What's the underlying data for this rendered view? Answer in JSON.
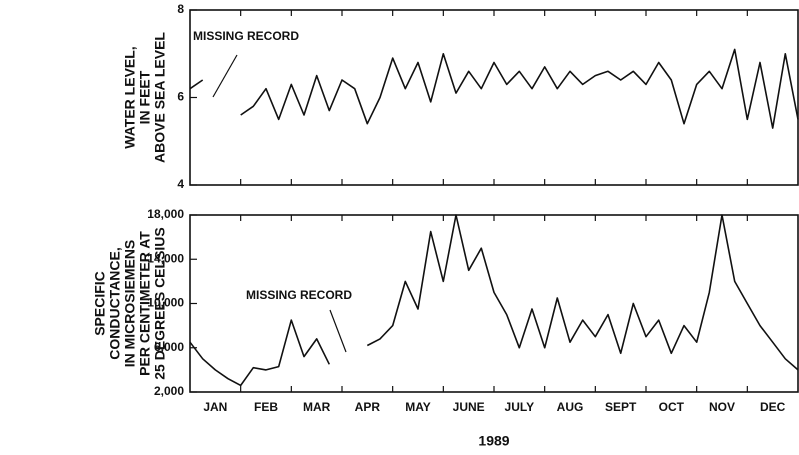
{
  "chart_data": [
    {
      "type": "line",
      "ylabel": [
        "WATER LEVEL,",
        "IN FEET",
        "ABOVE SEA LEVEL"
      ],
      "annotation": "MISSING RECORD",
      "xlim": [
        0,
        12
      ],
      "ylim": [
        4,
        8
      ],
      "yticks": [
        4,
        6,
        8
      ],
      "x": [
        0,
        0.25,
        0.5,
        0.75,
        1,
        1.25,
        1.5,
        1.75,
        2,
        2.25,
        2.5,
        2.75,
        3,
        3.25,
        3.5,
        3.75,
        4,
        4.25,
        4.5,
        4.75,
        5,
        5.25,
        5.5,
        5.75,
        6,
        6.25,
        6.5,
        6.75,
        7,
        7.25,
        7.5,
        7.75,
        8,
        8.25,
        8.5,
        8.75,
        9,
        9.25,
        9.5,
        9.75,
        10,
        10.25,
        10.5,
        10.75,
        11,
        11.25,
        11.5,
        11.75,
        12
      ],
      "series": [
        {
          "color": "#111111",
          "values": [
            6.2,
            6.4,
            null,
            null,
            5.6,
            5.8,
            6.2,
            5.5,
            6.3,
            5.6,
            6.5,
            5.7,
            6.4,
            6.2,
            5.4,
            6.0,
            6.9,
            6.2,
            6.8,
            5.9,
            7.0,
            6.1,
            6.6,
            6.2,
            6.8,
            6.3,
            6.6,
            6.2,
            6.7,
            6.2,
            6.6,
            6.3,
            6.5,
            6.6,
            6.4,
            6.6,
            6.3,
            6.8,
            6.4,
            5.4,
            6.3,
            6.6,
            6.2,
            7.1,
            5.5,
            6.8,
            5.3,
            7.0,
            5.5
          ]
        }
      ]
    },
    {
      "type": "line",
      "ylabel": [
        "SPECIFIC",
        "CONDUCTANCE,",
        "IN MICROSIEMENS",
        "PER CENTIMETER AT",
        "25 DEGREES CELSIUS"
      ],
      "annotation": "MISSING RECORD",
      "xlabel": "1989",
      "xlim": [
        0,
        12
      ],
      "xticks": [
        {
          "value": 0.5,
          "label": "JAN"
        },
        {
          "value": 1.5,
          "label": "FEB"
        },
        {
          "value": 2.5,
          "label": "MAR"
        },
        {
          "value": 3.5,
          "label": "APR"
        },
        {
          "value": 4.5,
          "label": "MAY"
        },
        {
          "value": 5.5,
          "label": "JUNE"
        },
        {
          "value": 6.5,
          "label": "JULY"
        },
        {
          "value": 7.5,
          "label": "AUG"
        },
        {
          "value": 8.5,
          "label": "SEPT"
        },
        {
          "value": 9.5,
          "label": "OCT"
        },
        {
          "value": 10.5,
          "label": "NOV"
        },
        {
          "value": 11.5,
          "label": "DEC"
        }
      ],
      "ylim": [
        2000,
        18000
      ],
      "yticks": [
        {
          "value": 2000,
          "label": "2,000"
        },
        {
          "value": 6000,
          "label": "6,000"
        },
        {
          "value": 10000,
          "label": "10,000"
        },
        {
          "value": 14000,
          "label": "14,000"
        },
        {
          "value": 18000,
          "label": "18,000"
        }
      ],
      "x": [
        0,
        0.25,
        0.5,
        0.75,
        1,
        1.25,
        1.5,
        1.75,
        2,
        2.25,
        2.5,
        2.75,
        3,
        3.25,
        3.5,
        3.75,
        4,
        4.25,
        4.5,
        4.75,
        5,
        5.25,
        5.5,
        5.75,
        6,
        6.25,
        6.5,
        6.75,
        7,
        7.25,
        7.5,
        7.75,
        8,
        8.25,
        8.5,
        8.75,
        9,
        9.25,
        9.5,
        9.75,
        10,
        10.25,
        10.5,
        10.75,
        11,
        11.25,
        11.5,
        11.75,
        12
      ],
      "series": [
        {
          "color": "#111111",
          "values": [
            6500,
            5000,
            4000,
            3200,
            2600,
            4200,
            4000,
            4300,
            8500,
            5200,
            6800,
            4500,
            null,
            null,
            6200,
            6800,
            8000,
            12000,
            9500,
            16500,
            12000,
            18000,
            13000,
            15000,
            11000,
            9000,
            6000,
            9500,
            6000,
            10500,
            6500,
            8500,
            7000,
            9000,
            5500,
            10000,
            7000,
            8500,
            5500,
            8000,
            6500,
            11000,
            18000,
            12000,
            10000,
            8000,
            6500,
            5000,
            4000
          ]
        }
      ]
    }
  ]
}
